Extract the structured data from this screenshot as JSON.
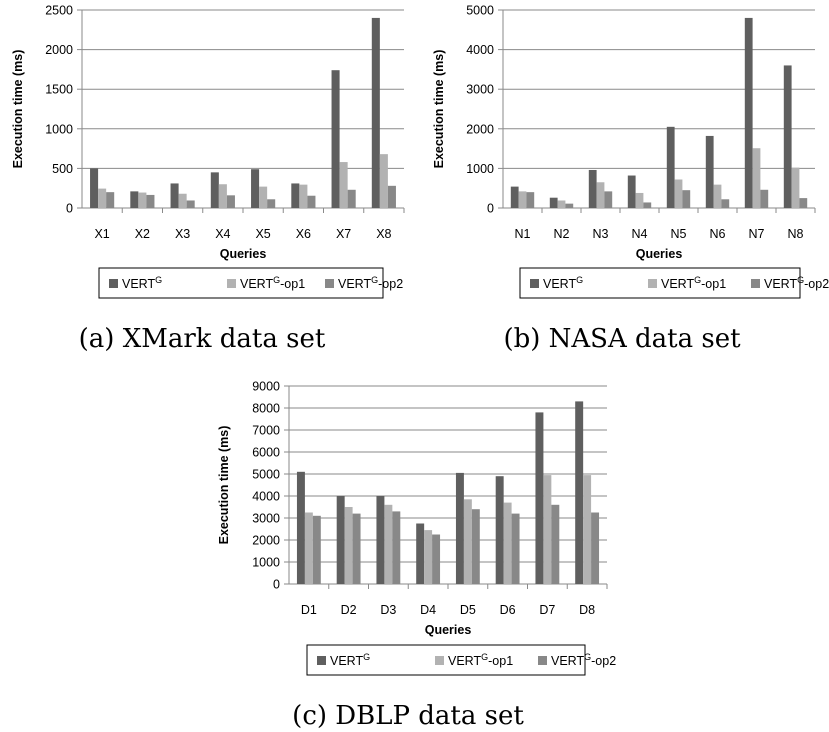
{
  "chart_data": [
    {
      "id": "a",
      "type": "bar",
      "caption": "(a) XMark data set",
      "xlabel": "Queries",
      "ylabel": "Execution time (ms)",
      "ylim": [
        0,
        2500
      ],
      "yticks": [
        0,
        500,
        1000,
        1500,
        2000,
        2500
      ],
      "categories": [
        "X1",
        "X2",
        "X3",
        "X4",
        "X5",
        "X6",
        "X7",
        "X8"
      ],
      "grid": true,
      "legend_position": "bottom",
      "series": [
        {
          "name_base": "VERT",
          "name_sup": "G",
          "name_suffix": "",
          "color": "#5f5f5f",
          "values": [
            500,
            210,
            310,
            450,
            490,
            310,
            1740,
            2400
          ]
        },
        {
          "name_base": "VERT",
          "name_sup": "G",
          "name_suffix": "-op1",
          "color": "#b2b2b2",
          "values": [
            245,
            195,
            180,
            300,
            270,
            295,
            580,
            680
          ]
        },
        {
          "name_base": "VERT",
          "name_sup": "G",
          "name_suffix": "-op2",
          "color": "#888888",
          "values": [
            200,
            165,
            95,
            160,
            110,
            155,
            230,
            280
          ]
        }
      ]
    },
    {
      "id": "b",
      "type": "bar",
      "caption": "(b) NASA data set",
      "xlabel": "Queries",
      "ylabel": "Execution time (ms)",
      "ylim": [
        0,
        5000
      ],
      "yticks": [
        0,
        1000,
        2000,
        3000,
        4000,
        5000
      ],
      "categories": [
        "N1",
        "N2",
        "N3",
        "N4",
        "N5",
        "N6",
        "N7",
        "N8"
      ],
      "grid": true,
      "legend_position": "bottom",
      "series": [
        {
          "name_base": "VERT",
          "name_sup": "G",
          "name_suffix": "",
          "color": "#5f5f5f",
          "values": [
            540,
            260,
            960,
            820,
            2050,
            1820,
            4800,
            3600
          ]
        },
        {
          "name_base": "VERT",
          "name_sup": "G",
          "name_suffix": "-op1",
          "color": "#b2b2b2",
          "values": [
            420,
            190,
            650,
            380,
            720,
            590,
            1510,
            1020
          ]
        },
        {
          "name_base": "VERT",
          "name_sup": "G",
          "name_suffix": "-op2",
          "color": "#888888",
          "values": [
            400,
            110,
            420,
            140,
            450,
            220,
            460,
            250
          ]
        }
      ]
    },
    {
      "id": "c",
      "type": "bar",
      "caption": "(c) DBLP data set",
      "xlabel": "Queries",
      "ylabel": "Execution time (ms)",
      "ylim": [
        0,
        9000
      ],
      "yticks": [
        0,
        1000,
        2000,
        3000,
        4000,
        5000,
        6000,
        7000,
        8000,
        9000
      ],
      "categories": [
        "D1",
        "D2",
        "D3",
        "D4",
        "D5",
        "D6",
        "D7",
        "D8"
      ],
      "grid": true,
      "legend_position": "bottom",
      "series": [
        {
          "name_base": "VERT",
          "name_sup": "G",
          "name_suffix": "",
          "color": "#5f5f5f",
          "values": [
            5100,
            4000,
            4000,
            2750,
            5050,
            4900,
            7800,
            8300
          ]
        },
        {
          "name_base": "VERT",
          "name_sup": "G",
          "name_suffix": "-op1",
          "color": "#b2b2b2",
          "values": [
            3250,
            3500,
            3600,
            2450,
            3850,
            3700,
            4950,
            4950
          ]
        },
        {
          "name_base": "VERT",
          "name_sup": "G",
          "name_suffix": "-op2",
          "color": "#888888",
          "values": [
            3100,
            3200,
            3300,
            2250,
            3400,
            3200,
            3600,
            3250
          ]
        }
      ]
    }
  ]
}
